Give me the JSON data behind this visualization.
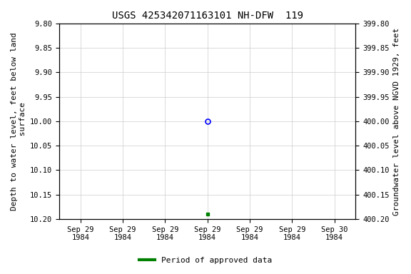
{
  "title": "USGS 425342071163101 NH-DFW  119",
  "ylabel_left": "Depth to water level, feet below land\n surface",
  "ylabel_right": "Groundwater level above NGVD 1929, feet",
  "ylim_left": [
    9.8,
    10.2
  ],
  "ylim_right": [
    400.2,
    399.8
  ],
  "yticks_left": [
    9.8,
    9.85,
    9.9,
    9.95,
    10.0,
    10.05,
    10.1,
    10.15,
    10.2
  ],
  "yticks_right": [
    400.2,
    400.15,
    400.1,
    400.05,
    400.0,
    399.95,
    399.9,
    399.85,
    399.8
  ],
  "data_point_open": {
    "depth": 10.0
  },
  "data_point_closed": {
    "depth": 10.19
  },
  "open_marker_color": "#0000ff",
  "closed_marker_color": "#008000",
  "legend_label": "Period of approved data",
  "legend_color": "#008000",
  "grid_color": "#cccccc",
  "background_color": "#ffffff",
  "title_fontsize": 10,
  "label_fontsize": 8,
  "tick_fontsize": 7.5,
  "font_family": "monospace"
}
